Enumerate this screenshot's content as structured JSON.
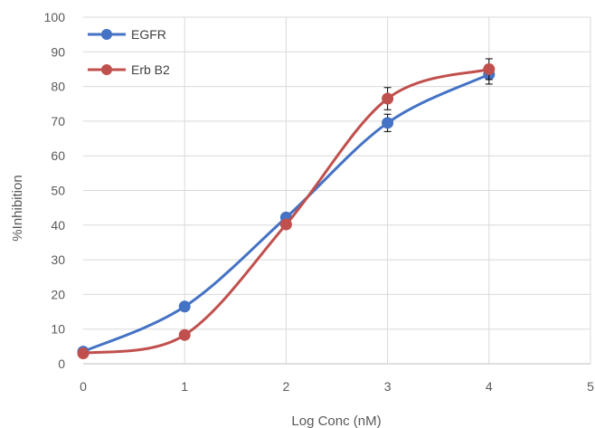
{
  "chart_data": {
    "type": "line",
    "title": "",
    "xlabel": "Log Conc (nM)",
    "ylabel": "%Inhibition",
    "xlim": [
      0,
      5
    ],
    "ylim": [
      0,
      100
    ],
    "x_ticks": [
      "0",
      "1",
      "2",
      "3",
      "4",
      "5"
    ],
    "y_ticks": [
      "0",
      "10",
      "20",
      "30",
      "40",
      "50",
      "60",
      "70",
      "80",
      "90",
      "100"
    ],
    "grid": true,
    "smooth": true,
    "legend_position": "top-left",
    "x": [
      0,
      1,
      2,
      3,
      4
    ],
    "series": [
      {
        "name": "EGFR",
        "color": "#4472C4",
        "values": [
          3.5,
          16.5,
          42.2,
          69.5,
          83.5
        ],
        "error": [
          0.5,
          0.8,
          1.3,
          2.5,
          2.8
        ]
      },
      {
        "name": "Erb B2",
        "color": "#C0504D",
        "values": [
          3.0,
          8.3,
          40.2,
          76.5,
          85.0
        ],
        "error": [
          0.5,
          0.6,
          0.8,
          3.2,
          3.0
        ]
      }
    ]
  }
}
